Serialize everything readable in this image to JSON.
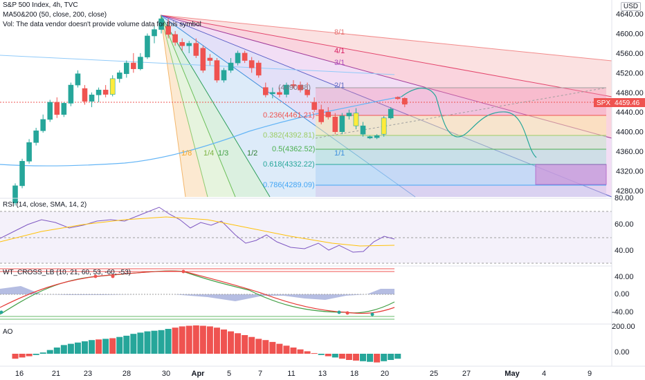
{
  "header": {
    "symbol_line": "S&P 500 Index, 4h, TVC",
    "ma_line": "MA50&200 (50, close, 200, close)",
    "vol_line": "Vol: The data vendor doesn't provide volume data for this symbol",
    "currency": "USD"
  },
  "price_axis": {
    "ticks": [
      "4640.00",
      "4600.00",
      "4560.00",
      "4520.00",
      "4480.00",
      "4440.00",
      "4400.00",
      "4360.00",
      "4320.00",
      "4280.00"
    ],
    "last_price_symbol": "SPX",
    "last_price": "4459.46"
  },
  "time_axis": {
    "labels": [
      "16",
      "21",
      "23",
      "28",
      "30",
      "Apr",
      "5",
      "7",
      "11",
      "13",
      "18",
      "20",
      "25",
      "27",
      "May",
      "4",
      "9"
    ]
  },
  "gann_fan": {
    "labels": [
      "8/1",
      "4/1",
      "3/1",
      "2/1",
      "1/1",
      "1/8",
      "1/4",
      "1/3",
      "1/2"
    ]
  },
  "fib_levels": [
    "(4490.88)",
    "0.236(4461.21)",
    "0.382(4392.81)",
    "0.5(4362.52)",
    "0.618(4332.22)",
    "0.786(4289.09)"
  ],
  "rsi": {
    "title": "RSI (14, close, SMA, 14, 2)",
    "ticks": [
      "80.00",
      "60.00",
      "40.00"
    ]
  },
  "wt": {
    "title": "WT_CROSS_LB (10, 21, 60, 53, -60, -53)",
    "ticks": [
      "40.00",
      "0.00",
      "-40.00"
    ]
  },
  "ao": {
    "title": "AO",
    "ticks": [
      "200.00",
      "0.00"
    ]
  },
  "colors": {
    "up": "#26a69a",
    "down": "#ef5350",
    "highlight": "#ffeb3b",
    "ma50": "#2196f3",
    "rsi_line": "#7e57c2",
    "rsi_ma": "#ffc107"
  },
  "chart_data": {
    "type": "candlestick",
    "y_range": [
      4260,
      4660
    ],
    "candles": [
      {
        "o": 4255,
        "h": 4295,
        "l": 4250,
        "c": 4290,
        "d": "up"
      },
      {
        "o": 4290,
        "h": 4345,
        "l": 4285,
        "c": 4340,
        "d": "up"
      },
      {
        "o": 4340,
        "h": 4385,
        "l": 4335,
        "c": 4378,
        "d": "up"
      },
      {
        "o": 4378,
        "h": 4408,
        "l": 4372,
        "c": 4402,
        "d": "up"
      },
      {
        "o": 4402,
        "h": 4435,
        "l": 4398,
        "c": 4425,
        "d": "up"
      },
      {
        "o": 4425,
        "h": 4465,
        "l": 4420,
        "c": 4460,
        "d": "up"
      },
      {
        "o": 4460,
        "h": 4470,
        "l": 4428,
        "c": 4435,
        "d": "down"
      },
      {
        "o": 4435,
        "h": 4460,
        "l": 4430,
        "c": 4458,
        "d": "up"
      },
      {
        "o": 4458,
        "h": 4500,
        "l": 4452,
        "c": 4495,
        "d": "up"
      },
      {
        "o": 4495,
        "h": 4525,
        "l": 4490,
        "c": 4518,
        "d": "up"
      },
      {
        "o": 4488,
        "h": 4495,
        "l": 4455,
        "c": 4462,
        "d": "down"
      },
      {
        "o": 4462,
        "h": 4480,
        "l": 4450,
        "c": 4475,
        "d": "up"
      },
      {
        "o": 4475,
        "h": 4490,
        "l": 4460,
        "c": 4485,
        "d": "up"
      },
      {
        "o": 4485,
        "h": 4495,
        "l": 4470,
        "c": 4476,
        "d": "down"
      },
      {
        "o": 4476,
        "h": 4515,
        "l": 4472,
        "c": 4508,
        "d": "yellow"
      },
      {
        "o": 4508,
        "h": 4525,
        "l": 4500,
        "c": 4520,
        "d": "up"
      },
      {
        "o": 4518,
        "h": 4545,
        "l": 4510,
        "c": 4540,
        "d": "up"
      },
      {
        "o": 4540,
        "h": 4560,
        "l": 4520,
        "c": 4528,
        "d": "down"
      },
      {
        "o": 4528,
        "h": 4560,
        "l": 4525,
        "c": 4552,
        "d": "up"
      },
      {
        "o": 4552,
        "h": 4600,
        "l": 4548,
        "c": 4595,
        "d": "up"
      },
      {
        "o": 4595,
        "h": 4615,
        "l": 4580,
        "c": 4608,
        "d": "up"
      },
      {
        "o": 4608,
        "h": 4635,
        "l": 4600,
        "c": 4630,
        "d": "up"
      },
      {
        "o": 4615,
        "h": 4630,
        "l": 4590,
        "c": 4598,
        "d": "down"
      },
      {
        "o": 4598,
        "h": 4605,
        "l": 4575,
        "c": 4582,
        "d": "down"
      },
      {
        "o": 4582,
        "h": 4590,
        "l": 4565,
        "c": 4575,
        "d": "down"
      },
      {
        "o": 4575,
        "h": 4585,
        "l": 4560,
        "c": 4580,
        "d": "up"
      },
      {
        "o": 4580,
        "h": 4590,
        "l": 4550,
        "c": 4555,
        "d": "down"
      },
      {
        "o": 4570,
        "h": 4575,
        "l": 4520,
        "c": 4525,
        "d": "down"
      },
      {
        "o": 4550,
        "h": 4558,
        "l": 4535,
        "c": 4545,
        "d": "down"
      },
      {
        "o": 4545,
        "h": 4550,
        "l": 4500,
        "c": 4505,
        "d": "down"
      },
      {
        "o": 4505,
        "h": 4530,
        "l": 4500,
        "c": 4525,
        "d": "up"
      },
      {
        "o": 4525,
        "h": 4550,
        "l": 4520,
        "c": 4540,
        "d": "up"
      },
      {
        "o": 4540,
        "h": 4565,
        "l": 4535,
        "c": 4560,
        "d": "up"
      },
      {
        "o": 4560,
        "h": 4565,
        "l": 4540,
        "c": 4545,
        "d": "down"
      },
      {
        "o": 4545,
        "h": 4552,
        "l": 4520,
        "c": 4530,
        "d": "down"
      },
      {
        "o": 4540,
        "h": 4545,
        "l": 4510,
        "c": 4515,
        "d": "down"
      },
      {
        "o": 4490,
        "h": 4500,
        "l": 4470,
        "c": 4475,
        "d": "down"
      },
      {
        "o": 4478,
        "h": 4490,
        "l": 4468,
        "c": 4480,
        "d": "up"
      },
      {
        "o": 4480,
        "h": 4490,
        "l": 4470,
        "c": 4476,
        "d": "down"
      },
      {
        "o": 4476,
        "h": 4500,
        "l": 4470,
        "c": 4495,
        "d": "up"
      },
      {
        "o": 4496,
        "h": 4505,
        "l": 4488,
        "c": 4496,
        "d": "down"
      },
      {
        "o": 4495,
        "h": 4502,
        "l": 4480,
        "c": 4485,
        "d": "down"
      },
      {
        "o": 4485,
        "h": 4500,
        "l": 4470,
        "c": 4475,
        "d": "down"
      },
      {
        "o": 4460,
        "h": 4470,
        "l": 4440,
        "c": 4445,
        "d": "down"
      },
      {
        "o": 4445,
        "h": 4455,
        "l": 4415,
        "c": 4420,
        "d": "down"
      },
      {
        "o": 4440,
        "h": 4450,
        "l": 4425,
        "c": 4430,
        "d": "down"
      },
      {
        "o": 4430,
        "h": 4438,
        "l": 4395,
        "c": 4400,
        "d": "down"
      },
      {
        "o": 4400,
        "h": 4438,
        "l": 4395,
        "c": 4432,
        "d": "up"
      },
      {
        "o": 4432,
        "h": 4445,
        "l": 4425,
        "c": 4438,
        "d": "up"
      },
      {
        "o": 4438,
        "h": 4448,
        "l": 4405,
        "c": 4412,
        "d": "yellow"
      },
      {
        "o": 4412,
        "h": 4420,
        "l": 4390,
        "c": 4395,
        "d": "up"
      },
      {
        "o": 4390,
        "h": 4392,
        "l": 4385,
        "c": 4388,
        "d": "up"
      },
      {
        "o": 4388,
        "h": 4395,
        "l": 4385,
        "c": 4392,
        "d": "up"
      },
      {
        "o": 4395,
        "h": 4432,
        "l": 4390,
        "c": 4428,
        "d": "yellow"
      },
      {
        "o": 4428,
        "h": 4450,
        "l": 4425,
        "c": 4446,
        "d": "up"
      },
      {
        "o": 4470,
        "h": 4472,
        "l": 4465,
        "c": 4468,
        "d": "down"
      },
      {
        "o": 4468,
        "h": 4470,
        "l": 4450,
        "c": 4456,
        "d": "down"
      }
    ]
  }
}
